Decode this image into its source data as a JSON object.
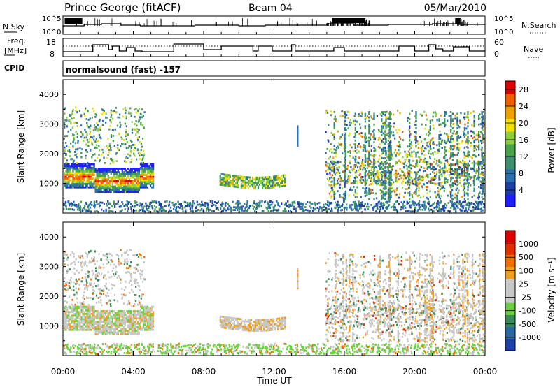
{
  "header": {
    "station": "Prince George (fitACF)",
    "beam": "Beam 04",
    "date": "05/Mar/2010"
  },
  "top_panels": {
    "nsky_label": "N.Sky",
    "nsearch_label": "N.Search",
    "nsky_ticks": [
      "10^5",
      "10^0"
    ],
    "freq_label_line1": "Freq.",
    "freq_label_line2": "[MHz]",
    "freq_ticks": [
      "18",
      "8"
    ],
    "nave_label": "Nave",
    "nave_ticks": [
      "60",
      "0"
    ],
    "cpid_label": "CPID",
    "cpid_value": "normalsound (fast) -157"
  },
  "colors": {
    "power_scale": [
      "#1f1fff",
      "#1f3fa8",
      "#2a6fb2",
      "#3c8f6f",
      "#4aa24a",
      "#8ccf3a",
      "#f0e000",
      "#f0a000",
      "#f06000",
      "#e00000"
    ],
    "velocity_scale": [
      "#1f3fa8",
      "#2a6aa0",
      "#3b8a5a",
      "#6ad040",
      "#c8c8c8",
      "#c8c8c8",
      "#f0a020",
      "#f07000",
      "#e03000",
      "#e00000"
    ]
  },
  "chart_data": [
    {
      "type": "line",
      "name": "N.Sky / N.Search noise",
      "y_ticks": [
        "10^5",
        "10^0"
      ],
      "x_range": [
        "00:00",
        "24:00"
      ]
    },
    {
      "type": "line",
      "name": "Frequency / Nave",
      "y_ticks_left": [
        8,
        18
      ],
      "y_ticks_right": [
        0,
        60
      ],
      "x_range": [
        "00:00",
        "24:00"
      ]
    },
    {
      "type": "heatmap",
      "ylabel": "Slant Range [km]",
      "y_ticks": [
        1000,
        2000,
        3000,
        4000
      ],
      "ylim": [
        0,
        4500
      ],
      "x_range": [
        "00:00",
        "24:00"
      ],
      "colorbar_label": "Power [dB]",
      "colorbar_ticks": [
        4,
        8,
        12,
        16,
        20,
        24,
        28
      ],
      "colorbar_range": [
        0,
        30
      ]
    },
    {
      "type": "heatmap",
      "ylabel": "Slant Range [km]",
      "y_ticks": [
        1000,
        2000,
        3000,
        4000
      ],
      "ylim": [
        0,
        4500
      ],
      "x_range": [
        "00:00",
        "24:00"
      ],
      "colorbar_label": "Velocity [m s⁻¹]",
      "colorbar_ticks": [
        1000,
        500,
        100,
        25,
        -25,
        -100,
        -500,
        -1000
      ]
    }
  ],
  "x_axis": {
    "ticks": [
      "00:00",
      "04:00",
      "08:00",
      "12:00",
      "16:00",
      "20:00",
      "00:00"
    ],
    "label": "Time UT"
  }
}
